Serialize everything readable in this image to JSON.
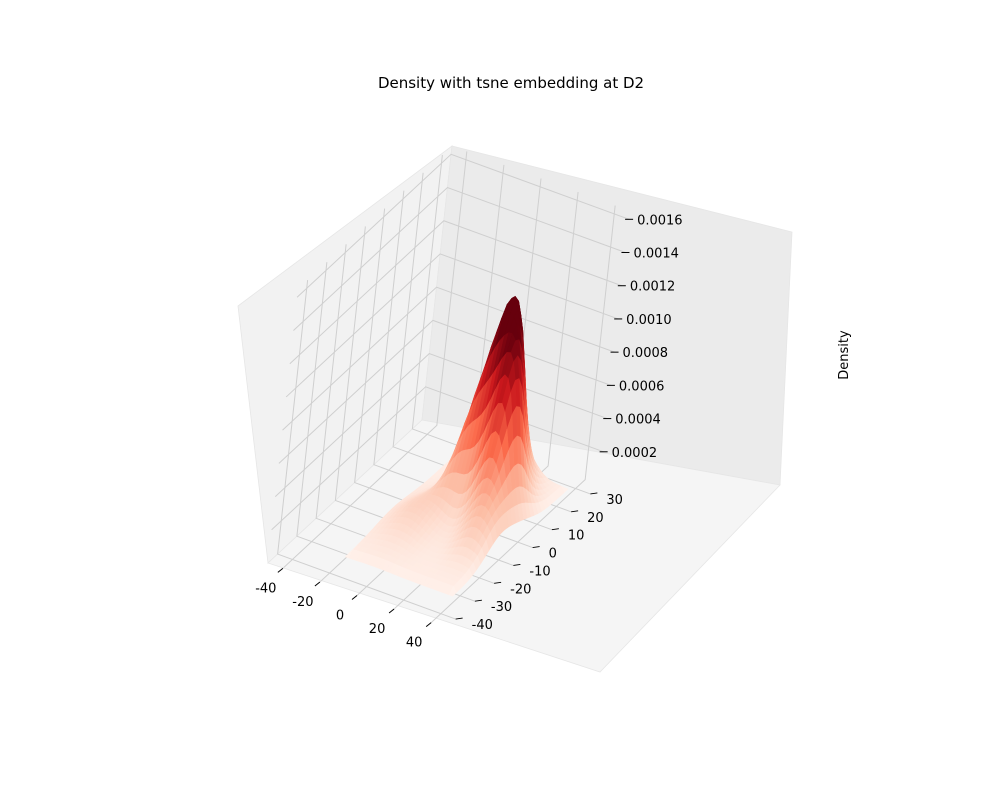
{
  "chart_data": {
    "type": "surface",
    "title": "Density with tsne embedding at D2",
    "xlabel": "",
    "ylabel": "",
    "zlabel": "Density",
    "x_ticks": [
      -40,
      -20,
      0,
      20,
      40
    ],
    "y_ticks": [
      -40,
      -30,
      -20,
      -10,
      0,
      10,
      20,
      30
    ],
    "z_ticks": [
      "0.0002",
      "0.0004",
      "0.0006",
      "0.0008",
      "0.0010",
      "0.0012",
      "0.0014",
      "0.0016"
    ],
    "xlim": [
      -48,
      48
    ],
    "ylim": [
      -45,
      35
    ],
    "zlim": [
      0,
      0.00165
    ],
    "colormap": "Reds",
    "peaks": [
      {
        "x": 14,
        "y": 12,
        "density": 0.00108
      },
      {
        "x": 24,
        "y": 4,
        "density": 0.0007
      },
      {
        "x": 4,
        "y": 6,
        "density": 0.00035
      },
      {
        "x": 30,
        "y": -8,
        "density": 0.00022
      },
      {
        "x": -4,
        "y": -10,
        "density": 0.00012
      }
    ],
    "grid": true
  }
}
